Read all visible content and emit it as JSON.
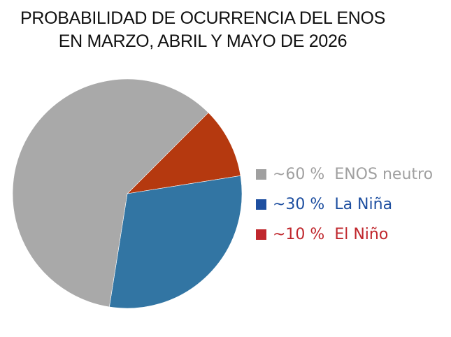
{
  "chart_data": {
    "type": "pie",
    "title": "PROBABILIDAD DE OCURRENCIA DEL ENOS EN MARZO, ABRIL Y MAYO DE 2026",
    "title_lines": [
      "PROBABILIDAD DE OCURRENCIA DEL ENOS",
      "EN MARZO, ABRIL Y MAYO DE 2026"
    ],
    "categories": [
      "ENOS neutro",
      "La Niña",
      "El Niño"
    ],
    "values": [
      60,
      30,
      10
    ],
    "unit": "%",
    "legend_position": "right",
    "slices": [
      {
        "name": "ENOS neutro",
        "value": 60,
        "label": "~60 %",
        "color": "#a9a9a9",
        "legend_color": "#a0a0a0"
      },
      {
        "name": "La Niña",
        "value": 30,
        "label": "~30 %",
        "color": "#3275a3",
        "legend_color": "#1e4fa0"
      },
      {
        "name": "El Niño",
        "value": 10,
        "label": "~10 %",
        "color": "#b5390f",
        "legend_color": "#c0272d"
      }
    ]
  },
  "legend": {
    "items": [
      {
        "pct": "~60 %",
        "label": "ENOS neutro"
      },
      {
        "pct": "~30 %",
        "label": "La Niña"
      },
      {
        "pct": "~10 %",
        "label": "El Niño"
      }
    ]
  }
}
